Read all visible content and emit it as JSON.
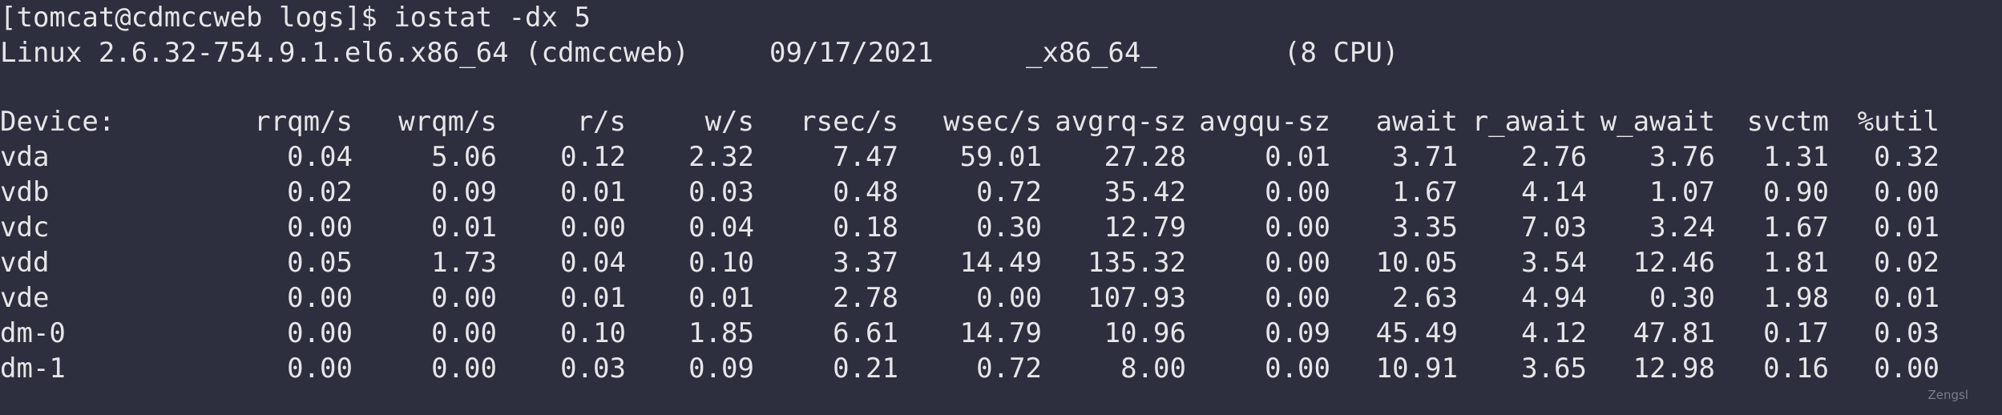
{
  "terminal": {
    "prompt": "[tomcat@cdmccweb logs]$ ",
    "command": "iostat -dx 5",
    "system": {
      "os": "Linux 2.6.32-754.9.1.el6.x86_64 (cdmccweb)",
      "date": "09/17/2021",
      "arch": "_x86_64_",
      "cpu": "(8 CPU)"
    },
    "headers": [
      "Device:",
      "rrqm/s",
      "wrqm/s",
      "r/s",
      "w/s",
      "rsec/s",
      "wsec/s",
      "avgrq-sz",
      "avgqu-sz",
      "await",
      "r_await",
      "w_await",
      "svctm",
      "%util"
    ],
    "rows": [
      [
        "vda",
        "0.04",
        "5.06",
        "0.12",
        "2.32",
        "7.47",
        "59.01",
        "27.28",
        "0.01",
        "3.71",
        "2.76",
        "3.76",
        "1.31",
        "0.32"
      ],
      [
        "vdb",
        "0.02",
        "0.09",
        "0.01",
        "0.03",
        "0.48",
        "0.72",
        "35.42",
        "0.00",
        "1.67",
        "4.14",
        "1.07",
        "0.90",
        "0.00"
      ],
      [
        "vdc",
        "0.00",
        "0.01",
        "0.00",
        "0.04",
        "0.18",
        "0.30",
        "12.79",
        "0.00",
        "3.35",
        "7.03",
        "3.24",
        "1.67",
        "0.01"
      ],
      [
        "vdd",
        "0.05",
        "1.73",
        "0.04",
        "0.10",
        "3.37",
        "14.49",
        "135.32",
        "0.00",
        "10.05",
        "3.54",
        "12.46",
        "1.81",
        "0.02"
      ],
      [
        "vde",
        "0.00",
        "0.00",
        "0.01",
        "0.01",
        "2.78",
        "0.00",
        "107.93",
        "0.00",
        "2.63",
        "4.94",
        "0.30",
        "1.98",
        "0.01"
      ],
      [
        "dm-0",
        "0.00",
        "0.00",
        "0.10",
        "1.85",
        "6.61",
        "14.79",
        "10.96",
        "0.09",
        "45.49",
        "4.12",
        "47.81",
        "0.17",
        "0.03"
      ],
      [
        "dm-1",
        "0.00",
        "0.00",
        "0.03",
        "0.09",
        "0.21",
        "0.72",
        "8.00",
        "0.00",
        "10.91",
        "3.65",
        "12.98",
        "0.16",
        "0.00"
      ]
    ]
  },
  "watermark": "Zengsl",
  "colors": {
    "background": "#2d2f3e",
    "foreground": "#e6e6ea",
    "watermark": "#7b7d8c"
  }
}
